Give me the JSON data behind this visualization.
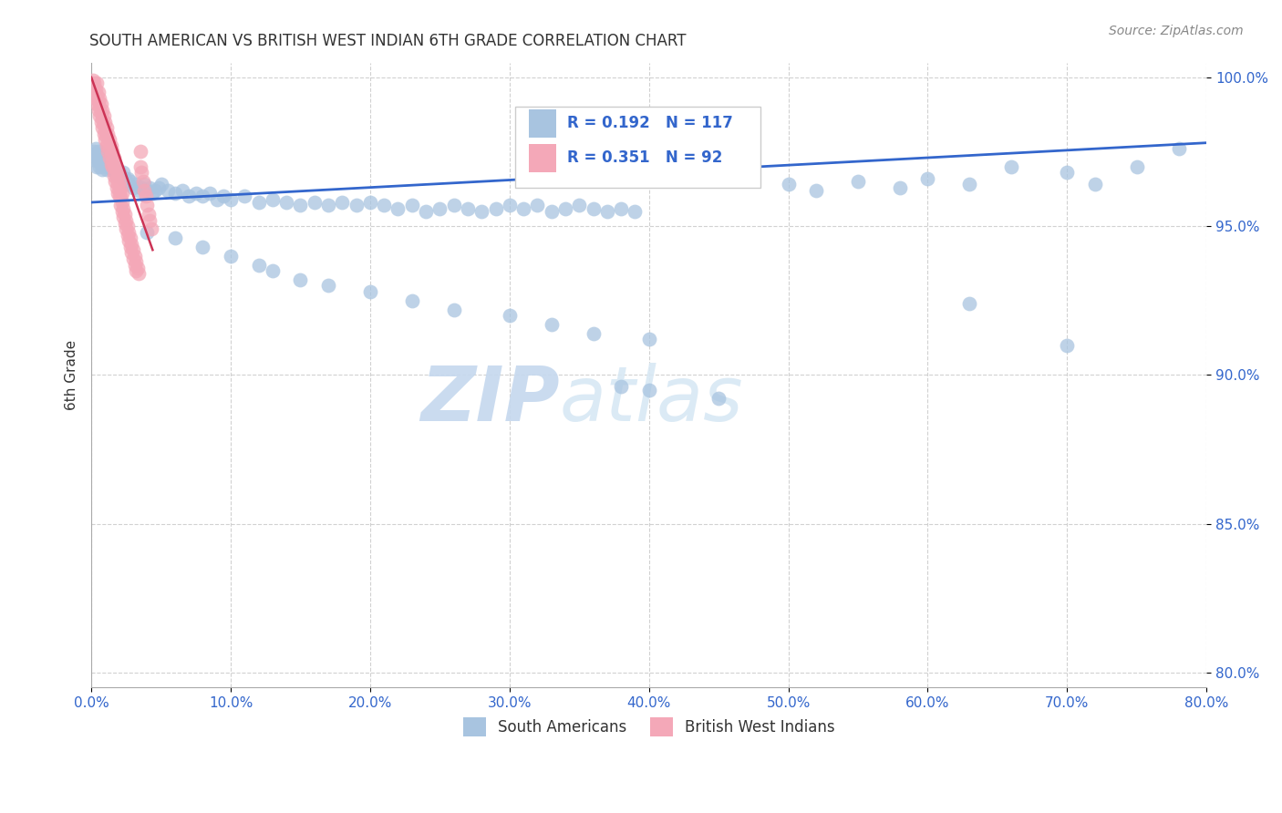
{
  "title": "SOUTH AMERICAN VS BRITISH WEST INDIAN 6TH GRADE CORRELATION CHART",
  "source": "Source: ZipAtlas.com",
  "xlabel_ticks": [
    "0.0%",
    "10.0%",
    "20.0%",
    "30.0%",
    "40.0%",
    "50.0%",
    "60.0%",
    "70.0%",
    "80.0%"
  ],
  "ylabel_ticks": [
    "80.0%",
    "85.0%",
    "90.0%",
    "95.0%",
    "100.0%"
  ],
  "xlim": [
    0.0,
    0.8
  ],
  "ylim": [
    0.795,
    1.005
  ],
  "ylabel": "6th Grade",
  "sa_R": 0.192,
  "sa_N": 117,
  "bwi_R": 0.351,
  "bwi_N": 92,
  "sa_color": "#a8c4e0",
  "bwi_color": "#f4a8b8",
  "sa_line_color": "#3366cc",
  "bwi_line_color": "#cc3355",
  "title_color": "#333333",
  "axis_label_color": "#333333",
  "tick_color": "#3366cc",
  "legend_R_color": "#3366cc",
  "grid_color": "#cccccc",
  "watermark_color": "#d0e4f0",
  "sa_points": [
    [
      0.001,
      0.974
    ],
    [
      0.002,
      0.975
    ],
    [
      0.003,
      0.976
    ],
    [
      0.003,
      0.972
    ],
    [
      0.004,
      0.974
    ],
    [
      0.004,
      0.97
    ],
    [
      0.005,
      0.975
    ],
    [
      0.005,
      0.972
    ],
    [
      0.006,
      0.973
    ],
    [
      0.006,
      0.97
    ],
    [
      0.007,
      0.974
    ],
    [
      0.007,
      0.971
    ],
    [
      0.008,
      0.972
    ],
    [
      0.008,
      0.969
    ],
    [
      0.009,
      0.973
    ],
    [
      0.009,
      0.971
    ],
    [
      0.01,
      0.972
    ],
    [
      0.01,
      0.97
    ],
    [
      0.011,
      0.971
    ],
    [
      0.011,
      0.969
    ],
    [
      0.012,
      0.972
    ],
    [
      0.013,
      0.97
    ],
    [
      0.014,
      0.971
    ],
    [
      0.015,
      0.969
    ],
    [
      0.016,
      0.97
    ],
    [
      0.017,
      0.968
    ],
    [
      0.018,
      0.969
    ],
    [
      0.019,
      0.967
    ],
    [
      0.02,
      0.968
    ],
    [
      0.021,
      0.967
    ],
    [
      0.022,
      0.966
    ],
    [
      0.023,
      0.968
    ],
    [
      0.024,
      0.966
    ],
    [
      0.025,
      0.965
    ],
    [
      0.026,
      0.966
    ],
    [
      0.027,
      0.964
    ],
    [
      0.028,
      0.965
    ],
    [
      0.03,
      0.963
    ],
    [
      0.032,
      0.964
    ],
    [
      0.034,
      0.962
    ],
    [
      0.036,
      0.963
    ],
    [
      0.038,
      0.964
    ],
    [
      0.04,
      0.962
    ],
    [
      0.042,
      0.963
    ],
    [
      0.044,
      0.961
    ],
    [
      0.046,
      0.962
    ],
    [
      0.048,
      0.963
    ],
    [
      0.05,
      0.964
    ],
    [
      0.055,
      0.962
    ],
    [
      0.06,
      0.961
    ],
    [
      0.065,
      0.962
    ],
    [
      0.07,
      0.96
    ],
    [
      0.075,
      0.961
    ],
    [
      0.08,
      0.96
    ],
    [
      0.085,
      0.961
    ],
    [
      0.09,
      0.959
    ],
    [
      0.095,
      0.96
    ],
    [
      0.1,
      0.959
    ],
    [
      0.11,
      0.96
    ],
    [
      0.12,
      0.958
    ],
    [
      0.13,
      0.959
    ],
    [
      0.14,
      0.958
    ],
    [
      0.15,
      0.957
    ],
    [
      0.16,
      0.958
    ],
    [
      0.17,
      0.957
    ],
    [
      0.18,
      0.958
    ],
    [
      0.19,
      0.957
    ],
    [
      0.2,
      0.958
    ],
    [
      0.21,
      0.957
    ],
    [
      0.22,
      0.956
    ],
    [
      0.23,
      0.957
    ],
    [
      0.24,
      0.955
    ],
    [
      0.25,
      0.956
    ],
    [
      0.26,
      0.957
    ],
    [
      0.27,
      0.956
    ],
    [
      0.28,
      0.955
    ],
    [
      0.29,
      0.956
    ],
    [
      0.3,
      0.957
    ],
    [
      0.31,
      0.956
    ],
    [
      0.32,
      0.957
    ],
    [
      0.33,
      0.955
    ],
    [
      0.34,
      0.956
    ],
    [
      0.35,
      0.957
    ],
    [
      0.36,
      0.956
    ],
    [
      0.37,
      0.955
    ],
    [
      0.38,
      0.956
    ],
    [
      0.39,
      0.955
    ],
    [
      0.04,
      0.948
    ],
    [
      0.06,
      0.946
    ],
    [
      0.08,
      0.943
    ],
    [
      0.1,
      0.94
    ],
    [
      0.12,
      0.937
    ],
    [
      0.13,
      0.935
    ],
    [
      0.15,
      0.932
    ],
    [
      0.17,
      0.93
    ],
    [
      0.2,
      0.928
    ],
    [
      0.23,
      0.925
    ],
    [
      0.26,
      0.922
    ],
    [
      0.3,
      0.92
    ],
    [
      0.33,
      0.917
    ],
    [
      0.36,
      0.914
    ],
    [
      0.4,
      0.912
    ],
    [
      0.5,
      0.964
    ],
    [
      0.52,
      0.962
    ],
    [
      0.55,
      0.965
    ],
    [
      0.58,
      0.963
    ],
    [
      0.6,
      0.966
    ],
    [
      0.63,
      0.964
    ],
    [
      0.66,
      0.97
    ],
    [
      0.7,
      0.968
    ],
    [
      0.72,
      0.964
    ],
    [
      0.75,
      0.97
    ],
    [
      0.78,
      0.976
    ],
    [
      0.63,
      0.924
    ],
    [
      0.7,
      0.91
    ],
    [
      0.4,
      0.895
    ],
    [
      0.45,
      0.892
    ],
    [
      0.38,
      0.896
    ]
  ],
  "bwi_points": [
    [
      0.002,
      0.998
    ],
    [
      0.003,
      0.996
    ],
    [
      0.003,
      0.993
    ],
    [
      0.004,
      0.994
    ],
    [
      0.004,
      0.991
    ],
    [
      0.005,
      0.992
    ],
    [
      0.005,
      0.989
    ],
    [
      0.006,
      0.99
    ],
    [
      0.006,
      0.987
    ],
    [
      0.007,
      0.988
    ],
    [
      0.007,
      0.985
    ],
    [
      0.008,
      0.986
    ],
    [
      0.008,
      0.983
    ],
    [
      0.009,
      0.984
    ],
    [
      0.009,
      0.981
    ],
    [
      0.01,
      0.982
    ],
    [
      0.01,
      0.979
    ],
    [
      0.011,
      0.98
    ],
    [
      0.011,
      0.977
    ],
    [
      0.012,
      0.978
    ],
    [
      0.012,
      0.975
    ],
    [
      0.013,
      0.976
    ],
    [
      0.013,
      0.973
    ],
    [
      0.014,
      0.974
    ],
    [
      0.014,
      0.971
    ],
    [
      0.015,
      0.972
    ],
    [
      0.015,
      0.97
    ],
    [
      0.016,
      0.97
    ],
    [
      0.016,
      0.967
    ],
    [
      0.017,
      0.968
    ],
    [
      0.017,
      0.965
    ],
    [
      0.018,
      0.966
    ],
    [
      0.018,
      0.963
    ],
    [
      0.019,
      0.964
    ],
    [
      0.019,
      0.961
    ],
    [
      0.02,
      0.962
    ],
    [
      0.02,
      0.96
    ],
    [
      0.021,
      0.96
    ],
    [
      0.021,
      0.957
    ],
    [
      0.022,
      0.958
    ],
    [
      0.022,
      0.955
    ],
    [
      0.023,
      0.956
    ],
    [
      0.023,
      0.953
    ],
    [
      0.024,
      0.954
    ],
    [
      0.024,
      0.951
    ],
    [
      0.025,
      0.952
    ],
    [
      0.025,
      0.949
    ],
    [
      0.026,
      0.95
    ],
    [
      0.026,
      0.947
    ],
    [
      0.027,
      0.948
    ],
    [
      0.027,
      0.945
    ],
    [
      0.028,
      0.946
    ],
    [
      0.028,
      0.943
    ],
    [
      0.029,
      0.944
    ],
    [
      0.029,
      0.941
    ],
    [
      0.03,
      0.942
    ],
    [
      0.03,
      0.939
    ],
    [
      0.031,
      0.94
    ],
    [
      0.031,
      0.937
    ],
    [
      0.032,
      0.938
    ],
    [
      0.032,
      0.935
    ],
    [
      0.033,
      0.936
    ],
    [
      0.034,
      0.934
    ],
    [
      0.035,
      0.975
    ],
    [
      0.035,
      0.97
    ],
    [
      0.036,
      0.968
    ],
    [
      0.037,
      0.965
    ],
    [
      0.038,
      0.962
    ],
    [
      0.039,
      0.96
    ],
    [
      0.04,
      0.957
    ],
    [
      0.041,
      0.954
    ],
    [
      0.042,
      0.952
    ],
    [
      0.043,
      0.949
    ],
    [
      0.001,
      0.999
    ],
    [
      0.002,
      0.996
    ],
    [
      0.004,
      0.998
    ],
    [
      0.005,
      0.995
    ],
    [
      0.006,
      0.993
    ],
    [
      0.007,
      0.991
    ],
    [
      0.008,
      0.989
    ],
    [
      0.009,
      0.987
    ],
    [
      0.01,
      0.985
    ],
    [
      0.011,
      0.983
    ],
    [
      0.012,
      0.981
    ],
    [
      0.013,
      0.979
    ],
    [
      0.014,
      0.977
    ],
    [
      0.015,
      0.975
    ],
    [
      0.016,
      0.973
    ],
    [
      0.017,
      0.971
    ],
    [
      0.018,
      0.969
    ],
    [
      0.019,
      0.967
    ],
    [
      0.02,
      0.965
    ],
    [
      0.021,
      0.963
    ],
    [
      0.022,
      0.961
    ]
  ],
  "sa_trend_x": [
    0.0,
    0.8
  ],
  "sa_trend_y": [
    0.958,
    0.978
  ],
  "bwi_trend_x": [
    0.0,
    0.044
  ],
  "bwi_trend_y": [
    1.0,
    0.942
  ]
}
